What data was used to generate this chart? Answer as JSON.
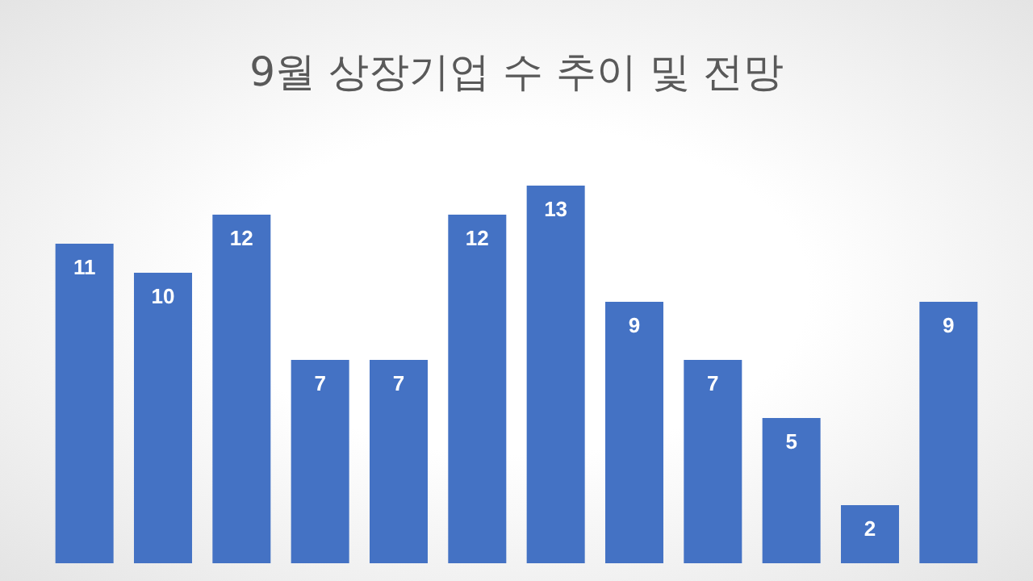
{
  "chart_data": {
    "type": "bar",
    "title": "9월 상장기업 수 추이 및 전망",
    "categories": [
      null,
      null,
      null,
      null,
      null,
      null,
      null,
      null,
      null,
      null,
      null,
      null
    ],
    "values": [
      11,
      10,
      12,
      7,
      7,
      12,
      13,
      9,
      7,
      5,
      2,
      9
    ],
    "color": "#4472c4",
    "data_labels": true,
    "tick_labels": false
  }
}
